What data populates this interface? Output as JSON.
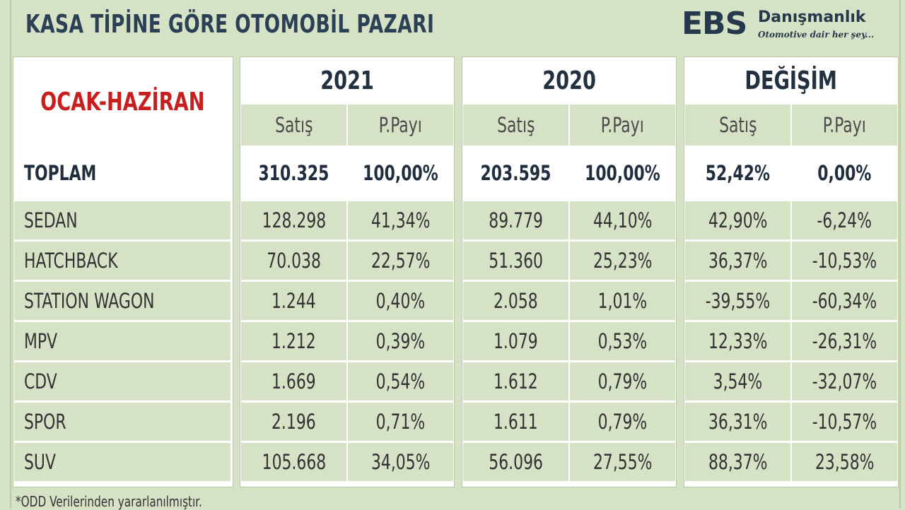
{
  "title": "KASA TİPİNE GÖRE OTOMOBİL PAZARI",
  "logo": {
    "brand": "EBS",
    "name": "Danışmanlık",
    "tagline": "Otomotive dair her şey..."
  },
  "period": "OCAK-HAZİRAN",
  "groups": [
    "2021",
    "2020",
    "DEĞİŞİM"
  ],
  "subheaders": [
    "Satış",
    "P.Payı"
  ],
  "colors": {
    "background": "#d6e2c6",
    "period": "#c81e1e",
    "title": "#2b3f55"
  },
  "chart_data": {
    "type": "table",
    "title": "KASA TİPİNE GÖRE OTOMOBİL PAZARI",
    "columns": [
      "2021 Satış",
      "2021 P.Payı",
      "2020 Satış",
      "2020 P.Payı",
      "DEĞİŞİM Satış",
      "DEĞİŞİM P.Payı"
    ],
    "rows": [
      {
        "label": "TOPLAM",
        "values": [
          "310.325",
          "100,00%",
          "203.595",
          "100,00%",
          "52,42%",
          "0,00%"
        ]
      },
      {
        "label": "SEDAN",
        "values": [
          "128.298",
          "41,34%",
          "89.779",
          "44,10%",
          "42,90%",
          "-6,24%"
        ]
      },
      {
        "label": "HATCHBACK",
        "values": [
          "70.038",
          "22,57%",
          "51.360",
          "25,23%",
          "36,37%",
          "-10,53%"
        ]
      },
      {
        "label": "STATION WAGON",
        "values": [
          "1.244",
          "0,40%",
          "2.058",
          "1,01%",
          "-39,55%",
          "-60,34%"
        ]
      },
      {
        "label": "MPV",
        "values": [
          "1.212",
          "0,39%",
          "1.079",
          "0,53%",
          "12,33%",
          "-26,31%"
        ]
      },
      {
        "label": "CDV",
        "values": [
          "1.669",
          "0,54%",
          "1.612",
          "0,79%",
          "3,54%",
          "-32,07%"
        ]
      },
      {
        "label": "SPOR",
        "values": [
          "2.196",
          "0,71%",
          "1.611",
          "0,79%",
          "36,31%",
          "-10,57%"
        ]
      },
      {
        "label": "SUV",
        "values": [
          "105.668",
          "34,05%",
          "56.096",
          "27,55%",
          "88,37%",
          "23,58%"
        ]
      }
    ]
  },
  "footnote": "*ODD Verilerinden yararlanılmıştır."
}
